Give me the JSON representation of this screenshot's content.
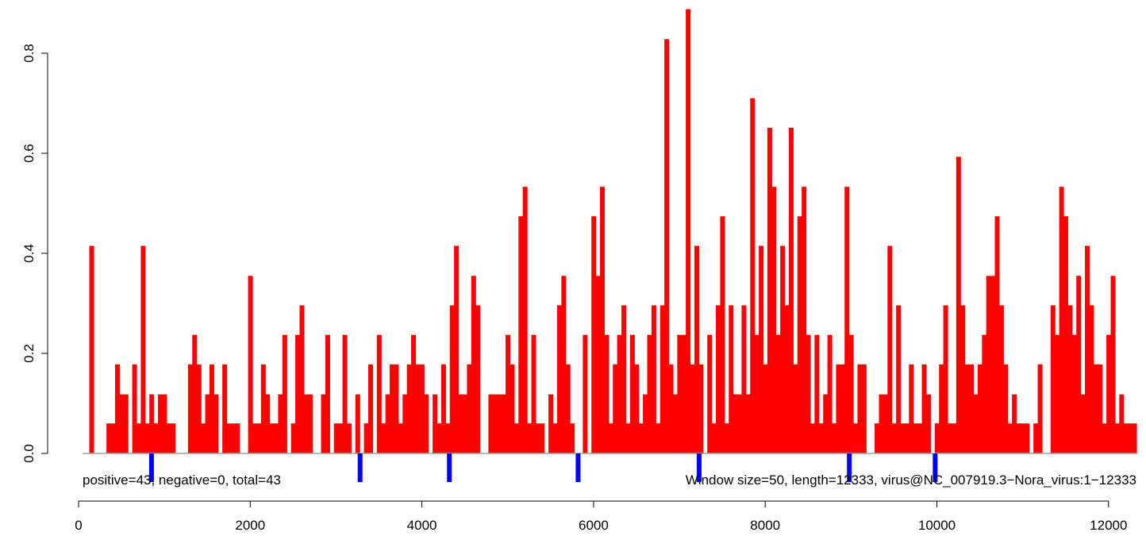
{
  "chart_data": {
    "type": "bar",
    "title": "",
    "xlabel": "",
    "ylabel": "",
    "xlim": [
      -10,
      12420
    ],
    "ylim": [
      0,
      0.89
    ],
    "x_ticks": [
      "0",
      "2000",
      "4000",
      "6000",
      "8000",
      "10000",
      "12000"
    ],
    "y_ticks": [
      "0.0",
      "0.2",
      "0.4",
      "0.6",
      "0.8"
    ],
    "bar_width": 50,
    "bar_color": "#ff0000",
    "marker_color": "#0000ff",
    "baseline_color": "#a0a0a0",
    "grid": false,
    "annotations": {
      "left": "positive=43, negative=0, total=43",
      "right": "Window size=50, length=12333, virus@NC_007919.3−Nora_virus:1−12333"
    },
    "markers": [
      850,
      3280,
      4320,
      5820,
      7230,
      8980,
      9980
    ],
    "bars": [
      [
        150,
        0.415
      ],
      [
        350,
        0.06
      ],
      [
        400,
        0.06
      ],
      [
        450,
        0.178
      ],
      [
        500,
        0.118
      ],
      [
        550,
        0.118
      ],
      [
        650,
        0.178
      ],
      [
        700,
        0.06
      ],
      [
        750,
        0.415
      ],
      [
        800,
        0.06
      ],
      [
        850,
        0.118
      ],
      [
        900,
        0.06
      ],
      [
        950,
        0.118
      ],
      [
        1000,
        0.118
      ],
      [
        1050,
        0.06
      ],
      [
        1100,
        0.06
      ],
      [
        1300,
        0.178
      ],
      [
        1350,
        0.237
      ],
      [
        1400,
        0.178
      ],
      [
        1450,
        0.06
      ],
      [
        1500,
        0.118
      ],
      [
        1550,
        0.178
      ],
      [
        1600,
        0.118
      ],
      [
        1700,
        0.178
      ],
      [
        1750,
        0.06
      ],
      [
        1800,
        0.06
      ],
      [
        1850,
        0.06
      ],
      [
        2000,
        0.355
      ],
      [
        2050,
        0.06
      ],
      [
        2100,
        0.06
      ],
      [
        2150,
        0.178
      ],
      [
        2200,
        0.118
      ],
      [
        2250,
        0.06
      ],
      [
        2300,
        0.06
      ],
      [
        2350,
        0.118
      ],
      [
        2400,
        0.237
      ],
      [
        2500,
        0.06
      ],
      [
        2550,
        0.237
      ],
      [
        2600,
        0.296
      ],
      [
        2650,
        0.118
      ],
      [
        2700,
        0.118
      ],
      [
        2850,
        0.118
      ],
      [
        2900,
        0.237
      ],
      [
        3000,
        0.06
      ],
      [
        3050,
        0.06
      ],
      [
        3100,
        0.237
      ],
      [
        3150,
        0.06
      ],
      [
        3250,
        0.118
      ],
      [
        3350,
        0.06
      ],
      [
        3400,
        0.178
      ],
      [
        3500,
        0.237
      ],
      [
        3550,
        0.06
      ],
      [
        3600,
        0.118
      ],
      [
        3650,
        0.178
      ],
      [
        3700,
        0.178
      ],
      [
        3750,
        0.06
      ],
      [
        3800,
        0.118
      ],
      [
        3850,
        0.178
      ],
      [
        3900,
        0.237
      ],
      [
        3950,
        0.178
      ],
      [
        4000,
        0.178
      ],
      [
        4050,
        0.118
      ],
      [
        4150,
        0.118
      ],
      [
        4200,
        0.06
      ],
      [
        4250,
        0.178
      ],
      [
        4300,
        0.06
      ],
      [
        4350,
        0.296
      ],
      [
        4400,
        0.415
      ],
      [
        4450,
        0.118
      ],
      [
        4500,
        0.118
      ],
      [
        4550,
        0.178
      ],
      [
        4600,
        0.355
      ],
      [
        4650,
        0.296
      ],
      [
        4800,
        0.118
      ],
      [
        4850,
        0.118
      ],
      [
        4900,
        0.118
      ],
      [
        4950,
        0.118
      ],
      [
        5000,
        0.237
      ],
      [
        5050,
        0.178
      ],
      [
        5100,
        0.06
      ],
      [
        5150,
        0.474
      ],
      [
        5200,
        0.533
      ],
      [
        5250,
        0.06
      ],
      [
        5300,
        0.237
      ],
      [
        5350,
        0.06
      ],
      [
        5400,
        0.06
      ],
      [
        5500,
        0.118
      ],
      [
        5550,
        0.06
      ],
      [
        5600,
        0.296
      ],
      [
        5650,
        0.355
      ],
      [
        5700,
        0.178
      ],
      [
        5750,
        0.06
      ],
      [
        5900,
        0.237
      ],
      [
        6000,
        0.474
      ],
      [
        6050,
        0.355
      ],
      [
        6100,
        0.533
      ],
      [
        6150,
        0.237
      ],
      [
        6200,
        0.06
      ],
      [
        6250,
        0.178
      ],
      [
        6300,
        0.237
      ],
      [
        6350,
        0.296
      ],
      [
        6400,
        0.06
      ],
      [
        6450,
        0.237
      ],
      [
        6500,
        0.178
      ],
      [
        6550,
        0.06
      ],
      [
        6600,
        0.118
      ],
      [
        6650,
        0.237
      ],
      [
        6700,
        0.296
      ],
      [
        6750,
        0.06
      ],
      [
        6800,
        0.296
      ],
      [
        6850,
        0.828
      ],
      [
        6900,
        0.178
      ],
      [
        6950,
        0.118
      ],
      [
        7000,
        0.237
      ],
      [
        7050,
        0.237
      ],
      [
        7100,
        0.888
      ],
      [
        7150,
        0.178
      ],
      [
        7200,
        0.415
      ],
      [
        7250,
        0.178
      ],
      [
        7350,
        0.237
      ],
      [
        7400,
        0.06
      ],
      [
        7450,
        0.296
      ],
      [
        7500,
        0.474
      ],
      [
        7550,
        0.06
      ],
      [
        7600,
        0.296
      ],
      [
        7650,
        0.118
      ],
      [
        7700,
        0.118
      ],
      [
        7750,
        0.296
      ],
      [
        7800,
        0.118
      ],
      [
        7850,
        0.71
      ],
      [
        7900,
        0.237
      ],
      [
        7950,
        0.415
      ],
      [
        8000,
        0.178
      ],
      [
        8050,
        0.651
      ],
      [
        8100,
        0.533
      ],
      [
        8150,
        0.237
      ],
      [
        8200,
        0.415
      ],
      [
        8250,
        0.296
      ],
      [
        8300,
        0.651
      ],
      [
        8350,
        0.178
      ],
      [
        8400,
        0.474
      ],
      [
        8450,
        0.533
      ],
      [
        8500,
        0.237
      ],
      [
        8550,
        0.06
      ],
      [
        8600,
        0.237
      ],
      [
        8650,
        0.06
      ],
      [
        8700,
        0.118
      ],
      [
        8750,
        0.237
      ],
      [
        8800,
        0.06
      ],
      [
        8850,
        0.178
      ],
      [
        8900,
        0.178
      ],
      [
        8950,
        0.533
      ],
      [
        9000,
        0.237
      ],
      [
        9050,
        0.06
      ],
      [
        9100,
        0.178
      ],
      [
        9150,
        0.178
      ],
      [
        9300,
        0.06
      ],
      [
        9350,
        0.118
      ],
      [
        9400,
        0.118
      ],
      [
        9450,
        0.415
      ],
      [
        9500,
        0.06
      ],
      [
        9550,
        0.296
      ],
      [
        9600,
        0.06
      ],
      [
        9650,
        0.06
      ],
      [
        9700,
        0.178
      ],
      [
        9750,
        0.06
      ],
      [
        9800,
        0.06
      ],
      [
        9850,
        0.178
      ],
      [
        9900,
        0.118
      ],
      [
        10000,
        0.06
      ],
      [
        10050,
        0.178
      ],
      [
        10100,
        0.296
      ],
      [
        10150,
        0.06
      ],
      [
        10200,
        0.06
      ],
      [
        10250,
        0.593
      ],
      [
        10300,
        0.296
      ],
      [
        10350,
        0.178
      ],
      [
        10400,
        0.178
      ],
      [
        10450,
        0.118
      ],
      [
        10500,
        0.178
      ],
      [
        10550,
        0.237
      ],
      [
        10600,
        0.355
      ],
      [
        10650,
        0.355
      ],
      [
        10700,
        0.474
      ],
      [
        10750,
        0.296
      ],
      [
        10800,
        0.178
      ],
      [
        10850,
        0.06
      ],
      [
        10900,
        0.118
      ],
      [
        10950,
        0.06
      ],
      [
        11000,
        0.06
      ],
      [
        11050,
        0.06
      ],
      [
        11150,
        0.06
      ],
      [
        11200,
        0.178
      ],
      [
        11350,
        0.296
      ],
      [
        11400,
        0.237
      ],
      [
        11450,
        0.533
      ],
      [
        11500,
        0.474
      ],
      [
        11550,
        0.296
      ],
      [
        11600,
        0.237
      ],
      [
        11650,
        0.355
      ],
      [
        11700,
        0.118
      ],
      [
        11750,
        0.415
      ],
      [
        11800,
        0.296
      ],
      [
        11850,
        0.178
      ],
      [
        11900,
        0.178
      ],
      [
        11950,
        0.06
      ],
      [
        12000,
        0.237
      ],
      [
        12050,
        0.355
      ],
      [
        12100,
        0.06
      ],
      [
        12150,
        0.118
      ],
      [
        12200,
        0.06
      ],
      [
        12250,
        0.06
      ],
      [
        12300,
        0.06
      ]
    ]
  }
}
